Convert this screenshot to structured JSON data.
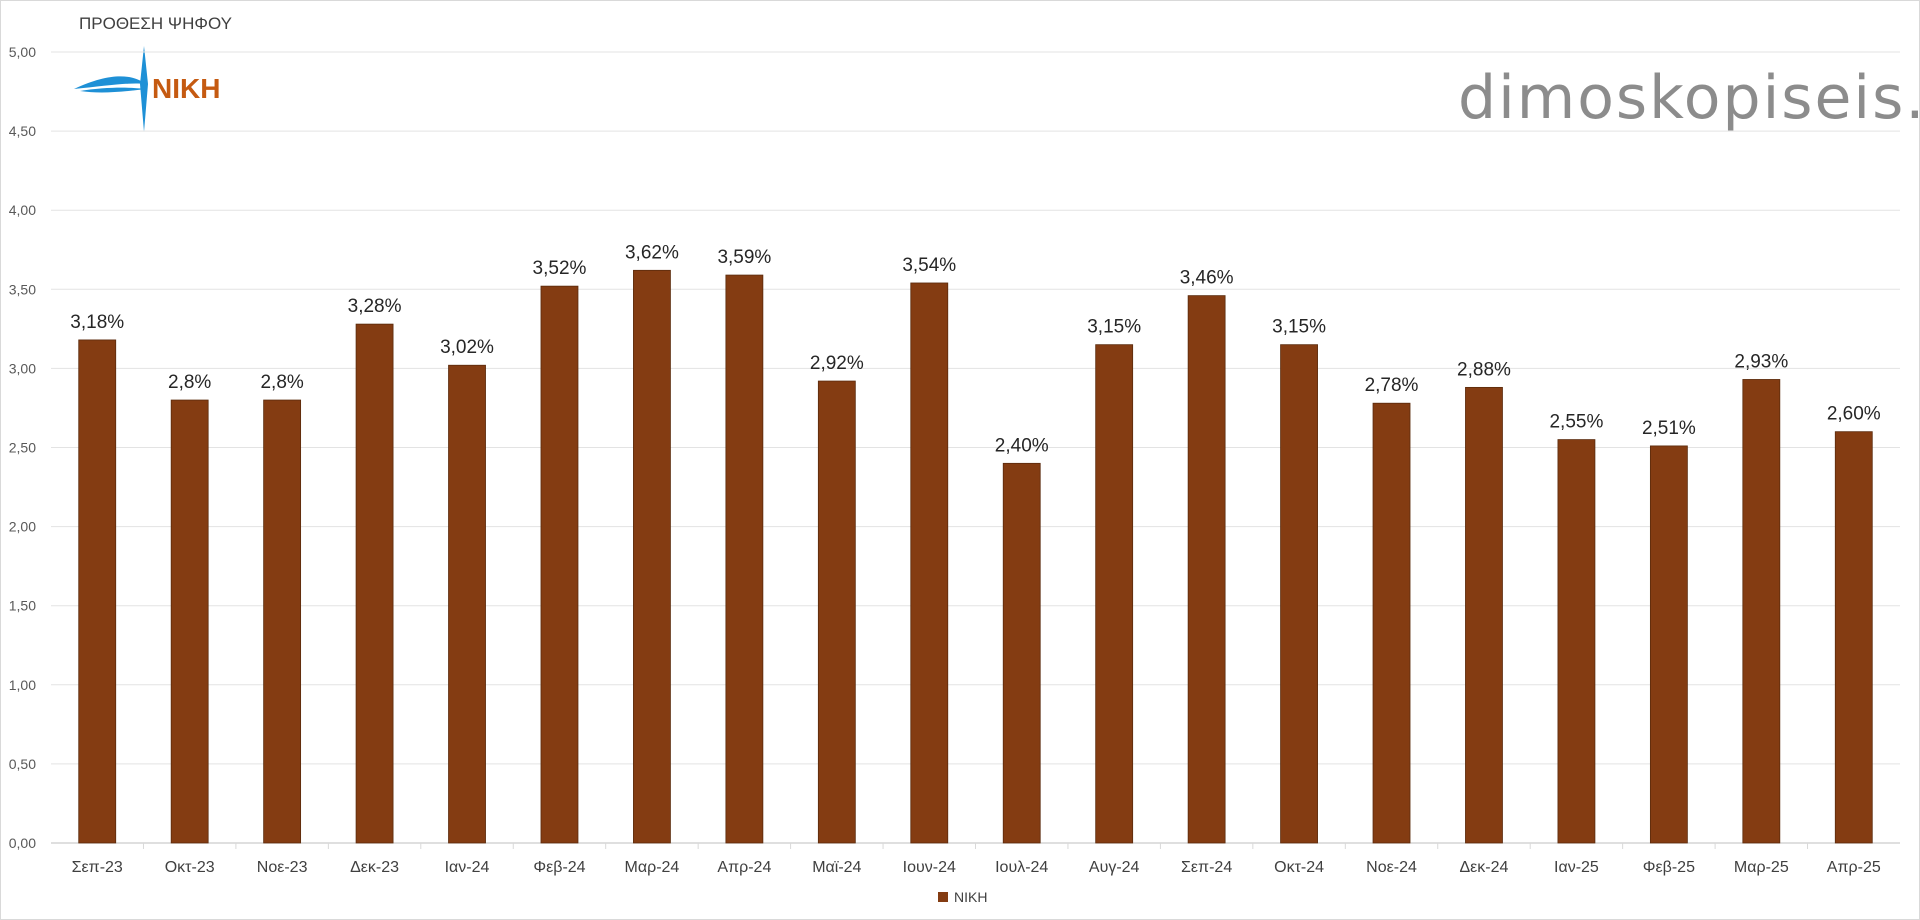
{
  "chart_data": {
    "type": "bar",
    "title": "ΠΡΟΘΕΣΗ ΨΗΦΟΥ",
    "categories": [
      "Σεπ-23",
      "Οκτ-23",
      "Νοε-23",
      "Δεκ-23",
      "Ιαν-24",
      "Φεβ-24",
      "Μαρ-24",
      "Απρ-24",
      "Μαϊ-24",
      "Ιουν-24",
      "Ιουλ-24",
      "Αυγ-24",
      "Σεπ-24",
      "Οκτ-24",
      "Νοε-24",
      "Δεκ-24",
      "Ιαν-25",
      "Φεβ-25",
      "Μαρ-25",
      "Απρ-25"
    ],
    "series": [
      {
        "name": "ΝΙΚΗ",
        "values": [
          3.18,
          2.8,
          2.8,
          3.28,
          3.02,
          3.52,
          3.62,
          3.59,
          2.92,
          3.54,
          2.4,
          3.15,
          3.46,
          3.15,
          2.78,
          2.88,
          2.55,
          2.51,
          2.93,
          2.6
        ],
        "data_labels": [
          "3,18%",
          "2,8%",
          "2,8%",
          "3,28%",
          "3,02%",
          "3,52%",
          "3,62%",
          "3,59%",
          "2,92%",
          "3,54%",
          "2,40%",
          "3,15%",
          "3,46%",
          "3,15%",
          "2,78%",
          "2,88%",
          "2,55%",
          "2,51%",
          "2,93%",
          "2,60%"
        ],
        "color": "#843C12"
      }
    ],
    "ylim": [
      0,
      5
    ],
    "yticks": [
      "0,00",
      "0,50",
      "1,00",
      "1,50",
      "2,00",
      "2,50",
      "3,00",
      "3,50",
      "4,00",
      "4,50",
      "5,00"
    ],
    "xlabel": "",
    "ylabel": "",
    "grid": true,
    "legend": "bottom"
  },
  "branding": {
    "logo_text": "NIKH",
    "logo_color": "#C55A11",
    "logo_accent": "#1E90D6",
    "watermark": "dimoskopiseis.gr"
  }
}
